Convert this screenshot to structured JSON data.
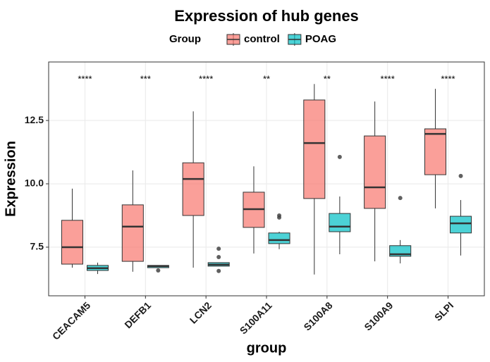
{
  "chart_data": {
    "type": "boxplot",
    "title": "Expression of hub genes",
    "x_label": "group",
    "y_label": "Expression",
    "legend_title": "Group",
    "categories": [
      "CEACAM5",
      "DEFB1",
      "LCN2",
      "S100A11",
      "S100A8",
      "S100A9",
      "SLPI"
    ],
    "annotations": [
      "****",
      "***",
      "****",
      "**",
      "**",
      "****",
      "****"
    ],
    "ylim": [
      5.58,
      14.81
    ],
    "yticks": [
      7.5,
      {
        "value": 10,
        "label": "10.0"
      },
      12.5
    ],
    "grid": true,
    "series": [
      {
        "name": "control",
        "color": "#F8766D",
        "boxes": [
          {
            "min": 6.69,
            "q1": 6.83,
            "median": 7.5,
            "q3": 8.56,
            "max": 9.81,
            "outliers": []
          },
          {
            "min": 6.53,
            "q1": 6.94,
            "median": 8.31,
            "q3": 9.17,
            "max": 10.53,
            "outliers": []
          },
          {
            "min": 6.69,
            "q1": 8.75,
            "median": 10.19,
            "q3": 10.83,
            "max": 12.86,
            "outliers": []
          },
          {
            "min": 7.25,
            "q1": 8.28,
            "median": 9.0,
            "q3": 9.67,
            "max": 10.69,
            "outliers": []
          },
          {
            "min": 6.42,
            "q1": 9.42,
            "median": 11.61,
            "q3": 13.31,
            "max": 13.94,
            "outliers": []
          },
          {
            "min": 6.94,
            "q1": 9.03,
            "median": 9.86,
            "q3": 11.89,
            "max": 13.25,
            "outliers": []
          },
          {
            "min": 9.03,
            "q1": 10.36,
            "median": 11.97,
            "q3": 12.17,
            "max": 13.75,
            "outliers": []
          }
        ]
      },
      {
        "name": "POAG",
        "color": "#00BFC4",
        "boxes": [
          {
            "min": 6.44,
            "q1": 6.58,
            "median": 6.67,
            "q3": 6.78,
            "max": 6.89,
            "outliers": []
          },
          {
            "min": 6.69,
            "q1": 6.69,
            "median": 6.75,
            "q3": 6.78,
            "max": 6.78,
            "outliers": [
              6.58
            ]
          },
          {
            "min": 6.75,
            "q1": 6.75,
            "median": 6.81,
            "q3": 6.89,
            "max": 6.89,
            "outliers": [
              7.44,
              7.11,
              6.56
            ]
          },
          {
            "min": 7.42,
            "q1": 7.64,
            "median": 7.78,
            "q3": 8.06,
            "max": 8.11,
            "outliers": [
              8.75,
              8.67
            ]
          },
          {
            "min": 7.22,
            "q1": 8.11,
            "median": 8.31,
            "q3": 8.83,
            "max": 9.5,
            "outliers": [
              11.06
            ]
          },
          {
            "min": 6.86,
            "q1": 7.14,
            "median": 7.22,
            "q3": 7.56,
            "max": 7.78,
            "outliers": [
              9.44
            ]
          },
          {
            "min": 7.17,
            "q1": 8.06,
            "median": 8.44,
            "q3": 8.72,
            "max": 9.36,
            "outliers": [
              10.31
            ]
          }
        ]
      }
    ]
  }
}
